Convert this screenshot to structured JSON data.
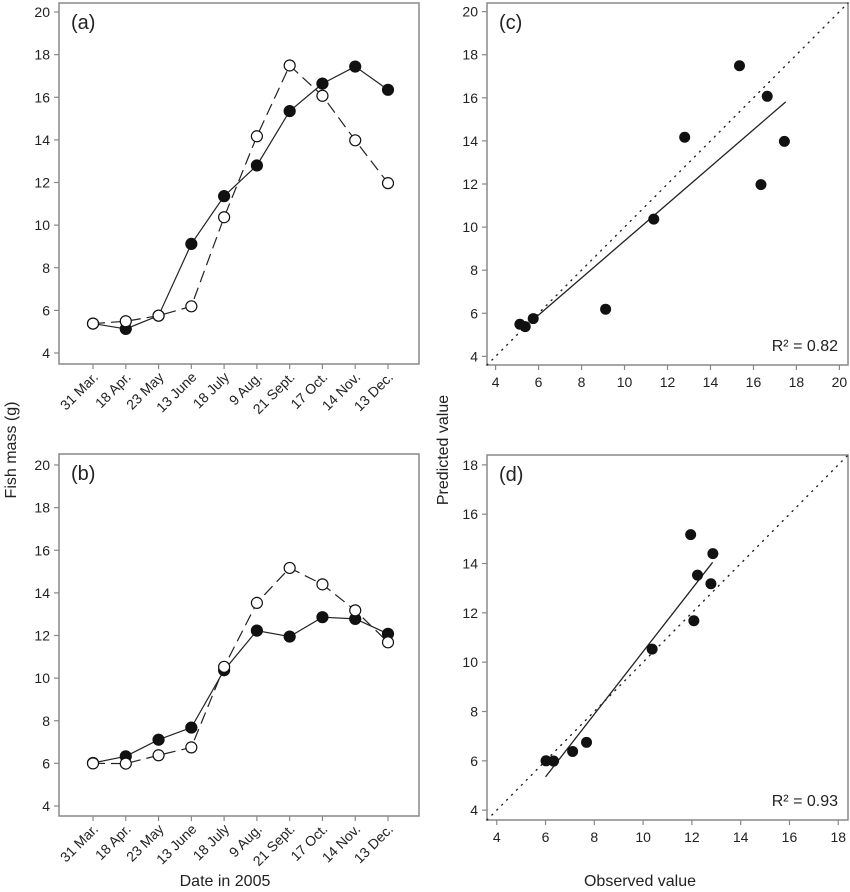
{
  "labels": {
    "y_left": "Fish mass  (g)",
    "x_left": "Date in 2005",
    "y_right": "Predicted value",
    "x_right": "Observed value"
  },
  "colors": {
    "ink": "#222222",
    "axis": "#888888"
  },
  "chart_data": [
    {
      "panel": "(a)",
      "type": "line",
      "categories": [
        "31 Mar.",
        "18 Apr.",
        "23 May",
        "13 June",
        "18 July",
        "9 Aug.",
        "21 Sept.",
        "17 Oct.",
        "14 Nov.",
        "13 Dec."
      ],
      "ylim": [
        4,
        20
      ],
      "yticks": [
        4,
        6,
        8,
        10,
        12,
        14,
        16,
        18,
        20
      ],
      "series": [
        {
          "marker": "filled",
          "line": "solid",
          "values": [
            5.38,
            5.13,
            5.75,
            9.12,
            11.36,
            12.8,
            15.35,
            16.64,
            17.44,
            16.35
          ]
        },
        {
          "marker": "open",
          "line": "dashed",
          "values": [
            5.38,
            5.49,
            5.75,
            6.19,
            10.37,
            14.17,
            17.49,
            16.07,
            13.98,
            11.97
          ]
        }
      ]
    },
    {
      "panel": "(b)",
      "type": "line",
      "categories": [
        "31 Mar.",
        "18 Apr.",
        "23 May",
        "13 June",
        "18 July",
        "9 Aug.",
        "21 Sept.",
        "17 Oct.",
        "14 Nov.",
        "13 Dec."
      ],
      "ylim": [
        4,
        20
      ],
      "yticks": [
        4,
        6,
        8,
        10,
        12,
        14,
        16,
        18,
        20
      ],
      "series": [
        {
          "marker": "filled",
          "line": "solid",
          "values": [
            6.02,
            6.33,
            7.11,
            7.68,
            10.37,
            12.23,
            11.95,
            12.86,
            12.78,
            12.08
          ]
        },
        {
          "marker": "open",
          "line": "dashed",
          "values": [
            6.0,
            5.99,
            6.38,
            6.75,
            10.53,
            13.53,
            15.17,
            14.4,
            13.18,
            11.68
          ]
        }
      ]
    },
    {
      "panel": "(c)",
      "type": "scatter",
      "xlim": [
        3.6,
        20.4
      ],
      "ylim": [
        3.6,
        20.4
      ],
      "xticks": [
        4,
        6,
        8,
        10,
        12,
        14,
        16,
        18,
        20
      ],
      "yticks": [
        4,
        6,
        8,
        10,
        12,
        14,
        16,
        18,
        20
      ],
      "x": [
        5.38,
        5.13,
        5.75,
        9.12,
        11.36,
        12.8,
        15.35,
        16.64,
        17.44,
        16.35
      ],
      "y": [
        5.38,
        5.49,
        5.75,
        6.19,
        10.37,
        14.17,
        17.49,
        16.07,
        13.98,
        11.97
      ],
      "fit": {
        "slope": 0.86,
        "intercept": 0.76,
        "x_range": [
          5.8,
          17.5
        ]
      },
      "identity_line": true,
      "annotation": "R² = 0.82"
    },
    {
      "panel": "(d)",
      "type": "scatter",
      "xlim": [
        3.6,
        18.4
      ],
      "ylim": [
        3.6,
        18.4
      ],
      "xticks": [
        4,
        6,
        8,
        10,
        12,
        14,
        16,
        18
      ],
      "yticks": [
        4,
        6,
        8,
        10,
        12,
        14,
        16,
        18
      ],
      "x": [
        6.02,
        6.33,
        7.11,
        7.68,
        10.37,
        12.23,
        11.95,
        12.86,
        12.78,
        12.08
      ],
      "y": [
        6.0,
        5.99,
        6.38,
        6.75,
        10.53,
        13.53,
        15.17,
        14.4,
        13.18,
        11.68
      ],
      "fit": {
        "slope": 1.27,
        "intercept": -2.27,
        "x_range": [
          6.0,
          12.85
        ]
      },
      "identity_line": true,
      "annotation": "R² = 0.93"
    }
  ]
}
